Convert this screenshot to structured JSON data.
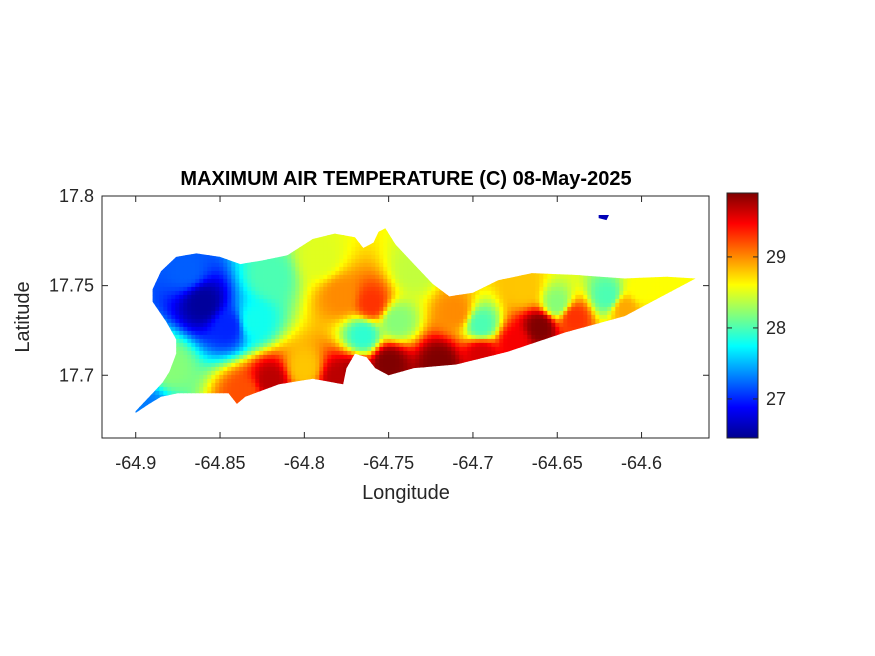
{
  "chart_data": {
    "type": "heatmap",
    "title": "MAXIMUM AIR TEMPERATURE (C) 08-May-2025",
    "xlabel": "Longitude",
    "ylabel": "Latitude",
    "xlim": [
      -64.92,
      -64.56
    ],
    "ylim": [
      17.665,
      17.8
    ],
    "x_ticks": [
      -64.9,
      -64.85,
      -64.8,
      -64.75,
      -64.7,
      -64.65,
      -64.6
    ],
    "x_tick_labels": [
      "-64.9",
      "-64.85",
      "-64.8",
      "-64.75",
      "-64.7",
      "-64.65",
      "-64.6"
    ],
    "y_ticks": [
      17.7,
      17.75,
      17.8
    ],
    "y_tick_labels": [
      "17.7",
      "17.75",
      "17.8"
    ],
    "colorbar": {
      "colormap": "jet",
      "clim": [
        26.45,
        29.9
      ],
      "ticks": [
        27,
        28,
        29
      ],
      "tick_labels": [
        "27",
        "28",
        "29"
      ],
      "colors": [
        "#00008f",
        "#0000ff",
        "#00ffff",
        "#ffff00",
        "#ff0000",
        "#800000"
      ]
    },
    "grid": false,
    "island_outline": [
      [
        -64.9,
        17.68
      ],
      [
        -64.896,
        17.684
      ],
      [
        -64.89,
        17.69
      ],
      [
        -64.884,
        17.696
      ],
      [
        -64.88,
        17.702
      ],
      [
        -64.876,
        17.712
      ],
      [
        -64.876,
        17.72
      ],
      [
        -64.882,
        17.73
      ],
      [
        -64.89,
        17.741
      ],
      [
        -64.89,
        17.748
      ],
      [
        -64.885,
        17.758
      ],
      [
        -64.876,
        17.766
      ],
      [
        -64.864,
        17.768
      ],
      [
        -64.85,
        17.766
      ],
      [
        -64.838,
        17.762
      ],
      [
        -64.825,
        17.764
      ],
      [
        -64.81,
        17.767
      ],
      [
        -64.795,
        17.776
      ],
      [
        -64.782,
        17.779
      ],
      [
        -64.77,
        17.777
      ],
      [
        -64.765,
        17.771
      ],
      [
        -64.759,
        17.774
      ],
      [
        -64.756,
        17.78
      ],
      [
        -64.752,
        17.782
      ],
      [
        -64.746,
        17.773
      ],
      [
        -64.735,
        17.762
      ],
      [
        -64.724,
        17.751
      ],
      [
        -64.714,
        17.744
      ],
      [
        -64.7,
        17.746
      ],
      [
        -64.685,
        17.753
      ],
      [
        -64.665,
        17.757
      ],
      [
        -64.64,
        17.756
      ],
      [
        -64.61,
        17.754
      ],
      [
        -64.585,
        17.755
      ],
      [
        -64.568,
        17.754
      ],
      [
        -64.58,
        17.748
      ],
      [
        -64.61,
        17.733
      ],
      [
        -64.645,
        17.724
      ],
      [
        -64.68,
        17.713
      ],
      [
        -64.71,
        17.706
      ],
      [
        -64.735,
        17.704
      ],
      [
        -64.75,
        17.7
      ],
      [
        -64.758,
        17.704
      ],
      [
        -64.763,
        17.71
      ],
      [
        -64.77,
        17.712
      ],
      [
        -64.775,
        17.704
      ],
      [
        -64.777,
        17.695
      ],
      [
        -64.795,
        17.698
      ],
      [
        -64.815,
        17.695
      ],
      [
        -64.835,
        17.688
      ],
      [
        -64.84,
        17.684
      ],
      [
        -64.845,
        17.69
      ],
      [
        -64.875,
        17.69
      ],
      [
        -64.885,
        17.688
      ],
      [
        -64.892,
        17.684
      ],
      [
        -64.9,
        17.679
      ]
    ],
    "islet_outline": [
      [
        -64.625,
        17.789
      ],
      [
        -64.62,
        17.789
      ],
      [
        -64.621,
        17.787
      ],
      [
        -64.625,
        17.788
      ]
    ],
    "temperature_field": [
      {
        "lon": -64.86,
        "lat": 17.74,
        "value": 26.5
      },
      {
        "lon": -64.845,
        "lat": 17.727,
        "value": 27.0
      },
      {
        "lon": -64.87,
        "lat": 17.758,
        "value": 27.2
      },
      {
        "lon": -64.88,
        "lat": 17.705,
        "value": 28.2
      },
      {
        "lon": -64.895,
        "lat": 17.682,
        "value": 27.3
      },
      {
        "lon": -64.83,
        "lat": 17.73,
        "value": 27.8
      },
      {
        "lon": -64.82,
        "lat": 17.755,
        "value": 28.0
      },
      {
        "lon": -64.79,
        "lat": 17.765,
        "value": 28.5
      },
      {
        "lon": -64.778,
        "lat": 17.744,
        "value": 29.0
      },
      {
        "lon": -64.76,
        "lat": 17.74,
        "value": 29.3
      },
      {
        "lon": -64.765,
        "lat": 17.722,
        "value": 27.9
      },
      {
        "lon": -64.745,
        "lat": 17.73,
        "value": 28.2
      },
      {
        "lon": -64.735,
        "lat": 17.758,
        "value": 28.4
      },
      {
        "lon": -64.71,
        "lat": 17.735,
        "value": 29.0
      },
      {
        "lon": -64.695,
        "lat": 17.728,
        "value": 28.0
      },
      {
        "lon": -64.67,
        "lat": 17.748,
        "value": 28.8
      },
      {
        "lon": -64.65,
        "lat": 17.74,
        "value": 28.2
      },
      {
        "lon": -64.62,
        "lat": 17.744,
        "value": 28.0
      },
      {
        "lon": -64.6,
        "lat": 17.748,
        "value": 28.6
      },
      {
        "lon": -64.58,
        "lat": 17.752,
        "value": 28.6
      },
      {
        "lon": -64.82,
        "lat": 17.697,
        "value": 29.7
      },
      {
        "lon": -64.835,
        "lat": 17.69,
        "value": 29.2
      },
      {
        "lon": -64.8,
        "lat": 17.704,
        "value": 28.8
      },
      {
        "lon": -64.78,
        "lat": 17.698,
        "value": 29.7
      },
      {
        "lon": -64.77,
        "lat": 17.7,
        "value": 29.8
      },
      {
        "lon": -64.75,
        "lat": 17.707,
        "value": 29.9
      },
      {
        "lon": -64.72,
        "lat": 17.707,
        "value": 29.9
      },
      {
        "lon": -64.695,
        "lat": 17.712,
        "value": 29.6
      },
      {
        "lon": -64.675,
        "lat": 17.718,
        "value": 29.5
      },
      {
        "lon": -64.66,
        "lat": 17.727,
        "value": 29.9
      },
      {
        "lon": -64.64,
        "lat": 17.732,
        "value": 29.3
      },
      {
        "lon": -64.61,
        "lat": 17.737,
        "value": 28.9
      },
      {
        "lon": -64.623,
        "lat": 17.788,
        "value": 26.6
      }
    ]
  }
}
